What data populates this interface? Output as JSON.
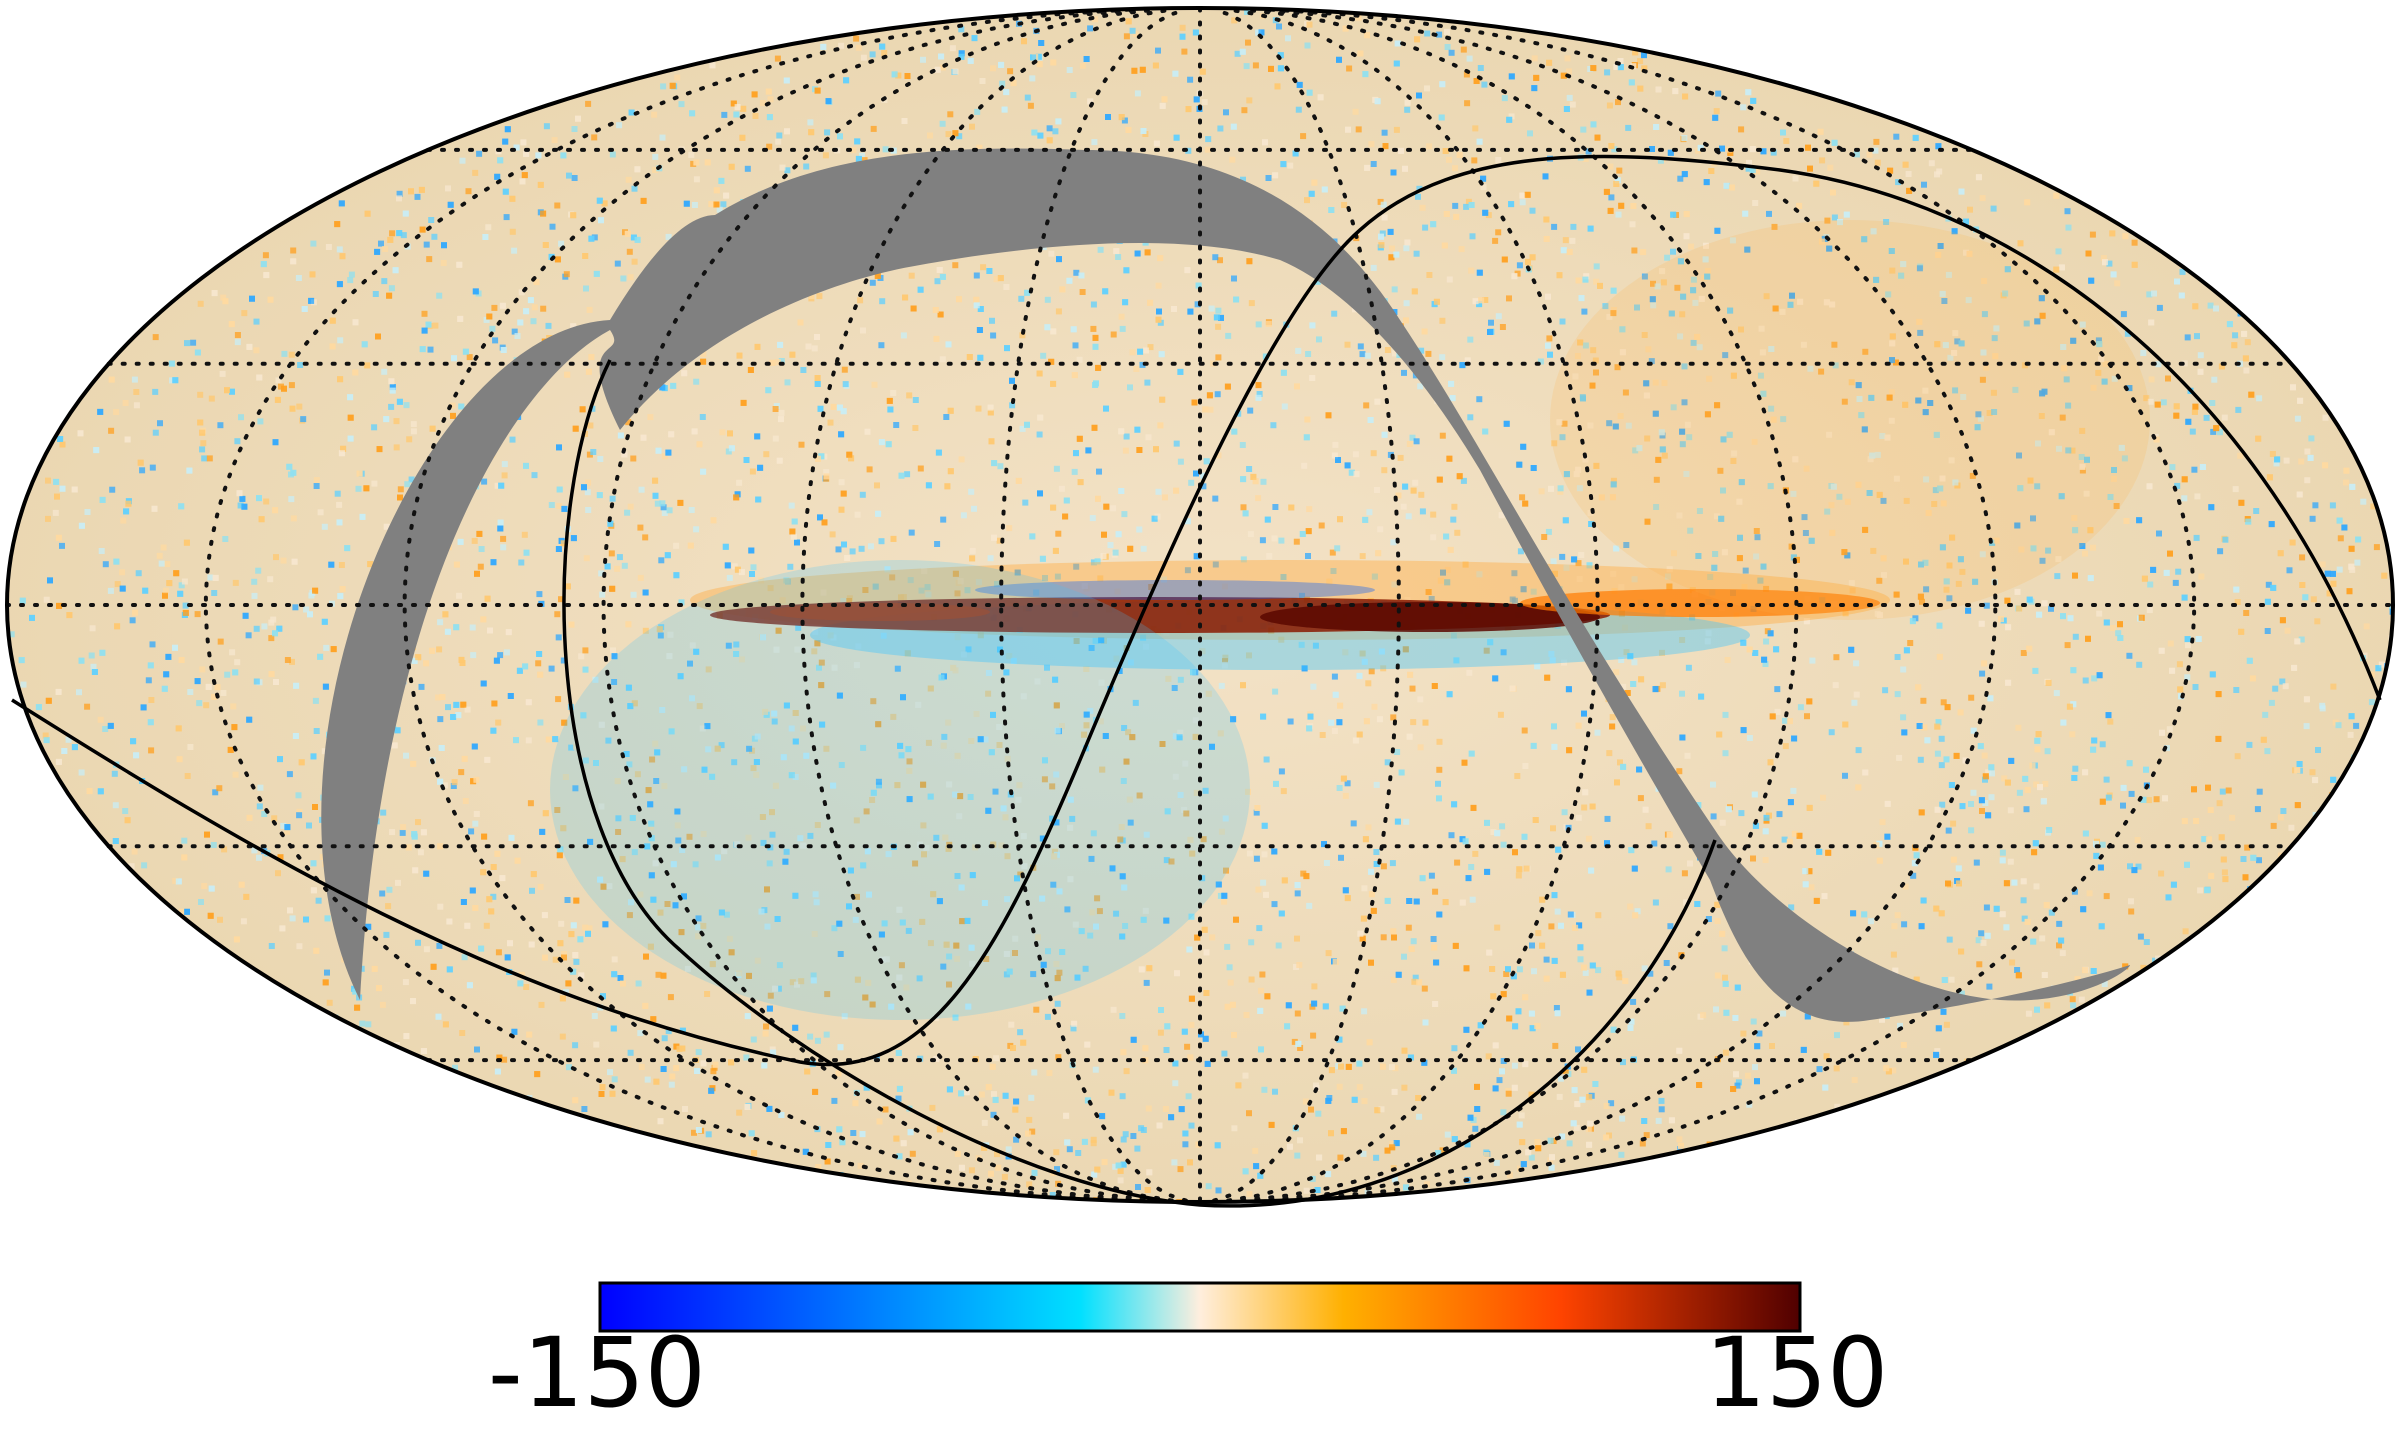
{
  "map": {
    "projection": "mollweide",
    "mask_color": "#808080",
    "overlays": [
      "graticule-dotted",
      "great-circle-solid"
    ]
  },
  "colorbar": {
    "min_label": "-150",
    "max_label": "150",
    "stops": [
      "#0000ff",
      "#00e0ff",
      "#ffeedd",
      "#ffaa00",
      "#ff4400",
      "#500000"
    ]
  }
}
